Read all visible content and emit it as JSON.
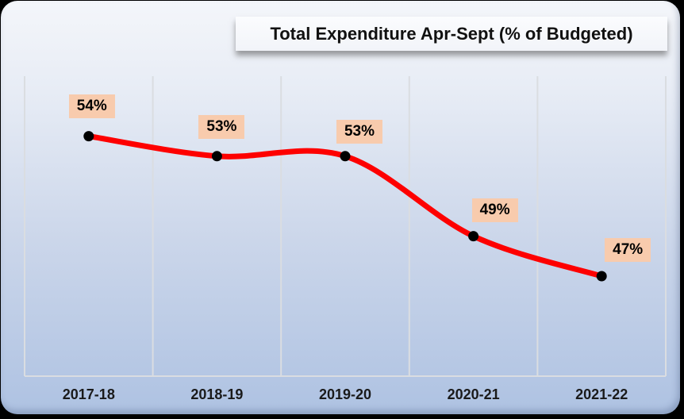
{
  "title": "Total Expenditure Apr-Sept (% of Budgeted)",
  "chart_data": {
    "type": "line",
    "title": "Total Expenditure Apr-Sept (% of Budgeted)",
    "categories": [
      "2017-18",
      "2018-19",
      "2019-20",
      "2020-21",
      "2021-22"
    ],
    "values": [
      54,
      53,
      53,
      49,
      47
    ],
    "point_labels": [
      "54%",
      "53%",
      "53%",
      "49%",
      "47%"
    ],
    "xlabel": "",
    "ylabel": "",
    "ylim": [
      42,
      57
    ],
    "grid": "vertical-only",
    "legend": "none",
    "smooth_line": true,
    "colors": {
      "line": "#FE0000",
      "marker": "#000000",
      "data_label_bg": "#F8CBAD",
      "data_label_text": "#000000",
      "gridline": "#DADDE1",
      "background_top": "#F4F6FA",
      "background_bottom": "#AEC2E2",
      "title_box_bg": "#F7F9FC",
      "frame": "#000000"
    }
  }
}
